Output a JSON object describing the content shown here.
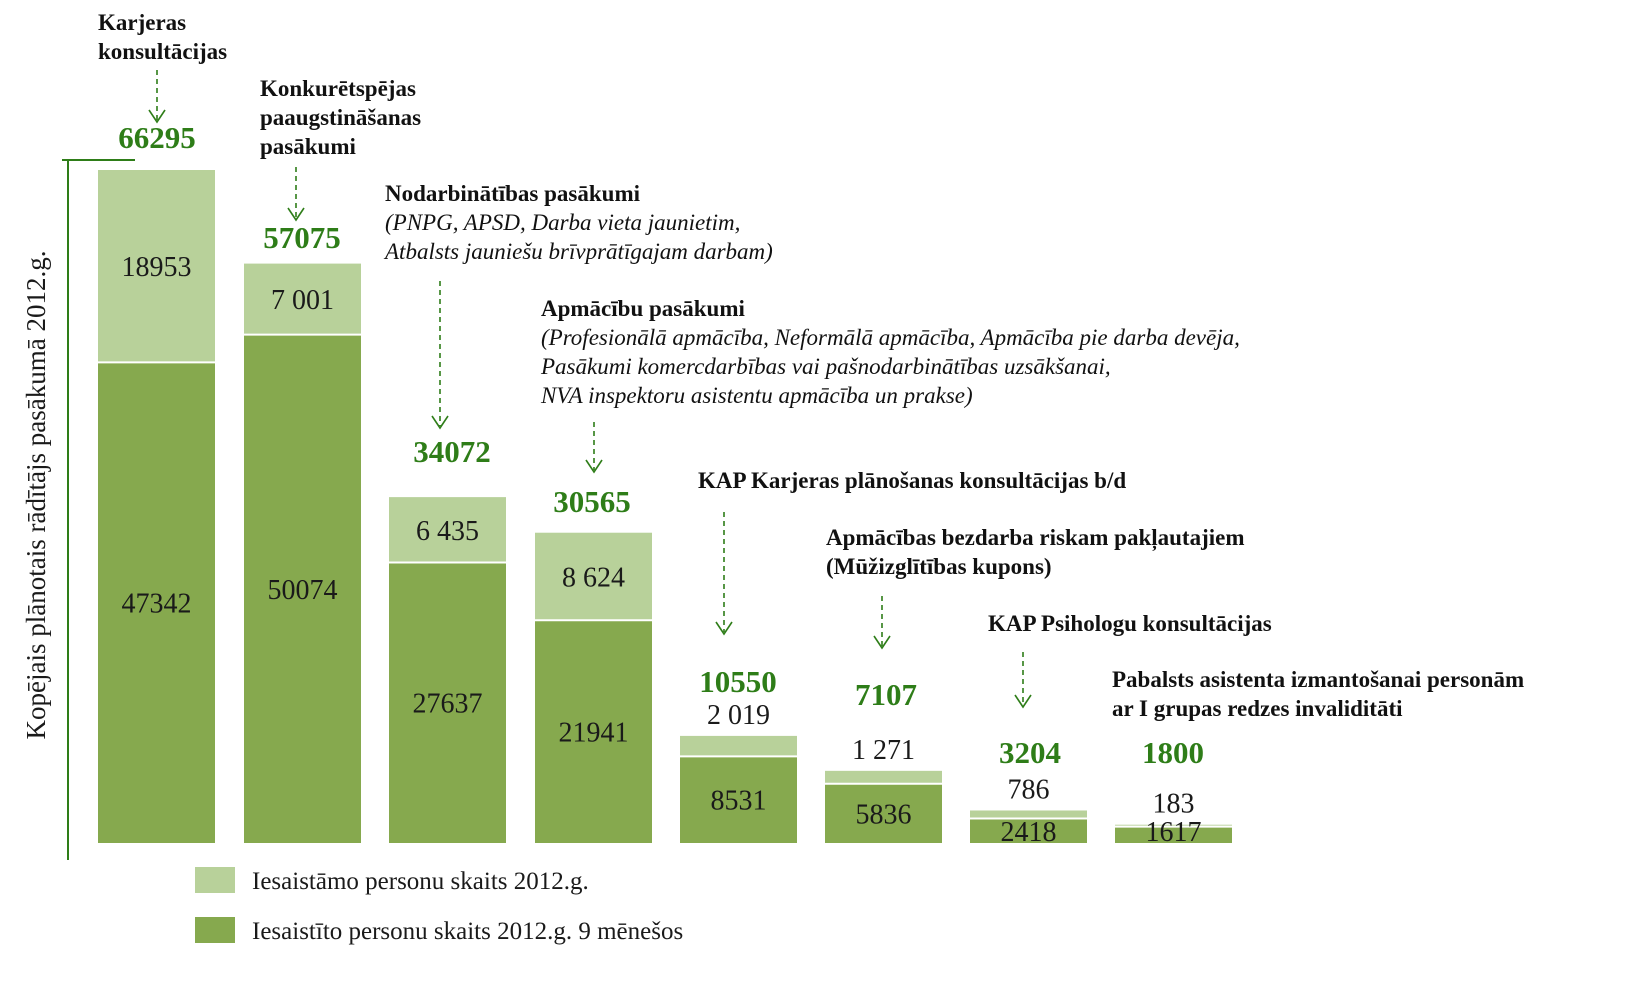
{
  "chart_data": {
    "type": "bar",
    "stacked": true,
    "ylabel": "Kopējais plānotais rādītājs pasākumā 2012.g.",
    "categories": [
      {
        "title": [
          "Karjeras",
          "konsultācijas"
        ],
        "subtitle": []
      },
      {
        "title": [
          "Konkurētspējas",
          "paaugstināšanas",
          "pasākumi"
        ],
        "subtitle": []
      },
      {
        "title": [
          "Nodarbinātības pasākumi"
        ],
        "subtitle": [
          "(PNPG, APSD, Darba vieta jaunietim,",
          "Atbalsts jauniešu brīvprātīgajam darbam)"
        ]
      },
      {
        "title": [
          "Apmācību pasākumi"
        ],
        "subtitle": [
          "(Profesionālā apmācība, Neformālā apmācība, Apmācība pie darba devēja,",
          "Pasākumi komercdarbības vai pašnodarbinātības uzsākšanai,",
          "NVA inspektoru asistentu apmācība un prakse)"
        ]
      },
      {
        "title": [
          "KAP Karjeras plānošanas konsultācijas b/d"
        ],
        "subtitle": []
      },
      {
        "title": [
          "Apmācības bezdarba riskam pakļautajiem",
          "(Mūžizglītības kupons)"
        ],
        "subtitle": []
      },
      {
        "title": [
          "KAP Psihologu konsultācijas"
        ],
        "subtitle": []
      },
      {
        "title": [
          "Pabalsts asistenta izmantošanai personām",
          "ar I grupas redzes invaliditāti"
        ],
        "subtitle": []
      }
    ],
    "totals": [
      66295,
      57075,
      34072,
      30565,
      10550,
      7107,
      3204,
      1800
    ],
    "series": [
      {
        "name": "Iesaistīto personu skaits 2012.g. 9 mēnešos",
        "color": "#86a94e",
        "values": [
          47342,
          50074,
          27637,
          21941,
          8531,
          5836,
          2418,
          1617
        ],
        "labels": [
          "47342",
          "50074",
          "27637",
          "21941",
          "8531",
          "5836",
          "2418",
          "1617"
        ]
      },
      {
        "name": "Iesaistāmo personu skaits 2012.g.",
        "color": "#b8d19a",
        "values": [
          18953,
          7001,
          6435,
          8624,
          2019,
          1271,
          786,
          183
        ],
        "labels": [
          "18953",
          "7 001",
          "6 435",
          "8 624",
          "2 019",
          "1 271",
          "786",
          "183"
        ]
      }
    ],
    "ylim": [
      0,
      66295
    ],
    "grid": false,
    "legend_position": "bottom-left"
  }
}
